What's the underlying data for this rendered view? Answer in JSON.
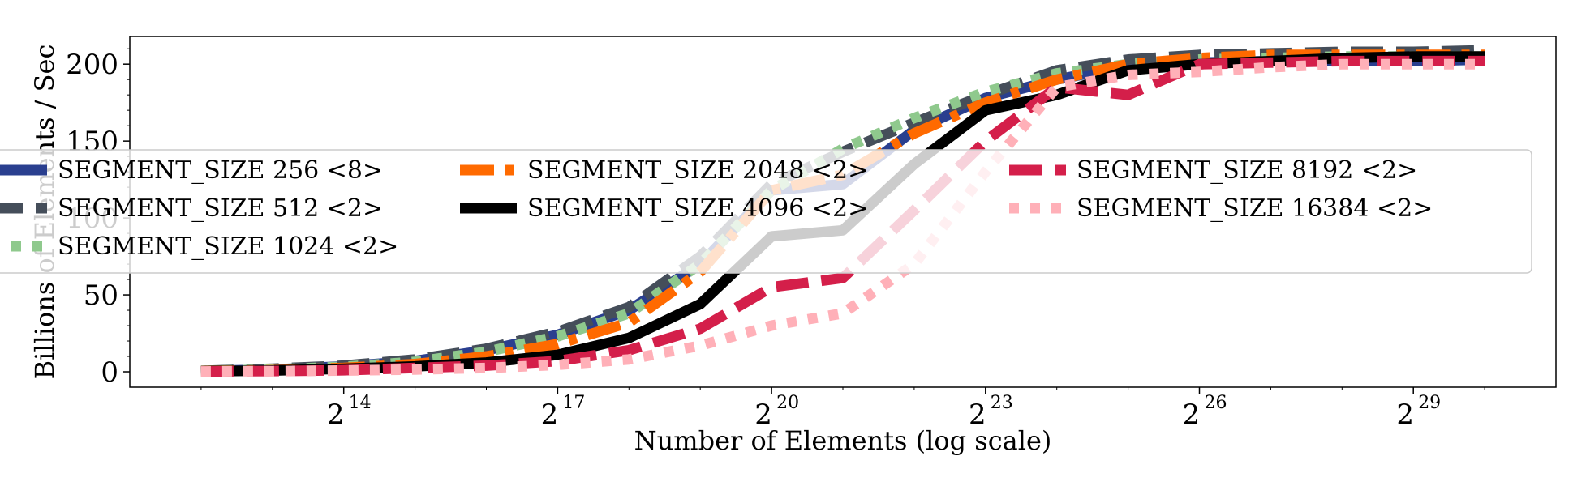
{
  "chart_data": {
    "type": "line",
    "title": "",
    "xlabel": "Number of Elements (log scale)",
    "ylabel": "Billions of Elements / Sec",
    "x_scale": "log2",
    "x_tick_base": "2",
    "x_tick_exponents": [
      "14",
      "17",
      "20",
      "23",
      "26",
      "29"
    ],
    "xlim_exponent": [
      11,
      31
    ],
    "ylim": [
      -10,
      218
    ],
    "y_ticks": [
      "0",
      "50",
      "100",
      "150",
      "200"
    ],
    "grid": false,
    "legend_placement": "center-left, overlapping plot, three columns",
    "x_exponents": [
      12,
      13,
      14,
      15,
      16,
      17,
      18,
      19,
      20,
      21,
      22,
      23,
      24,
      25,
      26,
      27,
      28,
      29,
      30
    ],
    "series": [
      {
        "name": "SEGMENT_SIZE 256 <8>",
        "color": "#2a3f8f",
        "style": "solid",
        "values": [
          0.5,
          1.5,
          3.5,
          7,
          14,
          24,
          40,
          70,
          118,
          122,
          157,
          178,
          190,
          199,
          201,
          202,
          202,
          202,
          203
        ]
      },
      {
        "name": "SEGMENT_SIZE 512 <2>",
        "color": "#454e5a",
        "style": "dashed-long",
        "values": [
          0.6,
          2,
          4,
          8,
          15,
          26,
          42,
          75,
          122,
          143,
          162,
          180,
          196,
          203,
          206,
          207,
          208,
          208,
          209
        ]
      },
      {
        "name": "SEGMENT_SIZE 1024 <2>",
        "color": "#8fc98d",
        "style": "dotted",
        "values": [
          0.5,
          1.5,
          3.2,
          6.5,
          13,
          23,
          38,
          70,
          118,
          145,
          165,
          182,
          194,
          200,
          203,
          204,
          205,
          205,
          205
        ]
      },
      {
        "name": "SEGMENT_SIZE 2048 <2>",
        "color": "#ff6a00",
        "style": "dash-dot",
        "values": [
          0.4,
          1,
          2.5,
          5,
          10,
          18,
          32,
          65,
          118,
          128,
          155,
          175,
          190,
          200,
          204,
          206,
          206,
          206,
          206
        ]
      },
      {
        "name": "SEGMENT_SIZE 4096 <2>",
        "color": "#000000",
        "style": "solid",
        "values": [
          0.3,
          0.8,
          2,
          3.5,
          6,
          11,
          22,
          44,
          88,
          92,
          135,
          170,
          180,
          196,
          200,
          202,
          204,
          205,
          205
        ]
      },
      {
        "name": "SEGMENT_SIZE 8192 <2>",
        "color": "#d41f4a",
        "style": "dashed-long",
        "values": [
          0.2,
          0.5,
          1,
          2.5,
          4,
          7,
          14,
          28,
          55,
          61,
          105,
          150,
          185,
          180,
          200,
          201,
          202,
          202,
          202
        ]
      },
      {
        "name": "SEGMENT_SIZE 16384 <2>",
        "color": "#ffb0b8",
        "style": "dotted",
        "values": [
          0.2,
          0.4,
          0.8,
          1.5,
          2.5,
          4.5,
          8,
          17,
          30,
          38,
          70,
          130,
          185,
          193,
          195,
          198,
          200,
          200,
          200
        ]
      }
    ]
  }
}
